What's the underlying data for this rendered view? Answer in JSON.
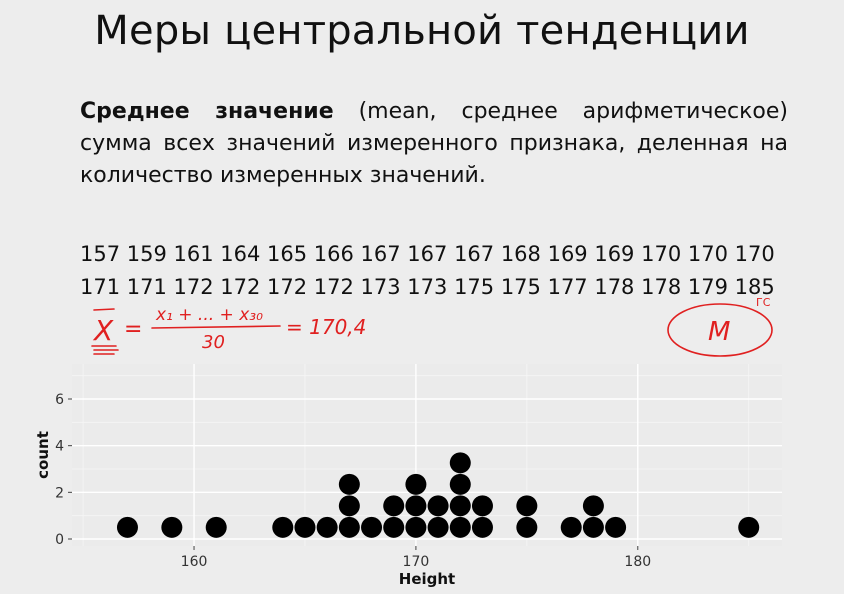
{
  "slide": {
    "title": "Меры центральной тенденции",
    "definition_term": "Среднее значение",
    "definition_rest": " (mean, среднее арифметическое) сумма всех значений измеренного признака, деленная на количество измеренных значений.",
    "numbers_row1": "157 159 161 164 165 166 167 167 167 168 169 169 170 170 170",
    "numbers_row2": "171 171 172 172 172 172 173 173 175 175 177 178 178 179 185",
    "handwritten_formula": {
      "lhs": "X",
      "numerator": "x₁ + ... + x₃₀",
      "denominator": "30",
      "result": "= 170,4",
      "color": "#e02020"
    },
    "handwritten_median": {
      "symbol": "M",
      "superscript": "ГС",
      "color": "#e02020"
    }
  },
  "chart_data": {
    "type": "dotplot",
    "xlabel": "Height",
    "ylabel": "count",
    "xlim": [
      154.5,
      186.5
    ],
    "ylim": [
      -0.3,
      7.5
    ],
    "x_ticks": [
      160,
      170,
      180
    ],
    "y_ticks": [
      0,
      2,
      4,
      6
    ],
    "grid": true,
    "panel_color": "#ebebeb",
    "dot_color": "#000000",
    "values": [
      157,
      159,
      161,
      164,
      165,
      166,
      167,
      167,
      167,
      168,
      169,
      169,
      170,
      170,
      170,
      171,
      171,
      172,
      172,
      172,
      172,
      173,
      173,
      175,
      175,
      177,
      178,
      178,
      179,
      185
    ]
  }
}
